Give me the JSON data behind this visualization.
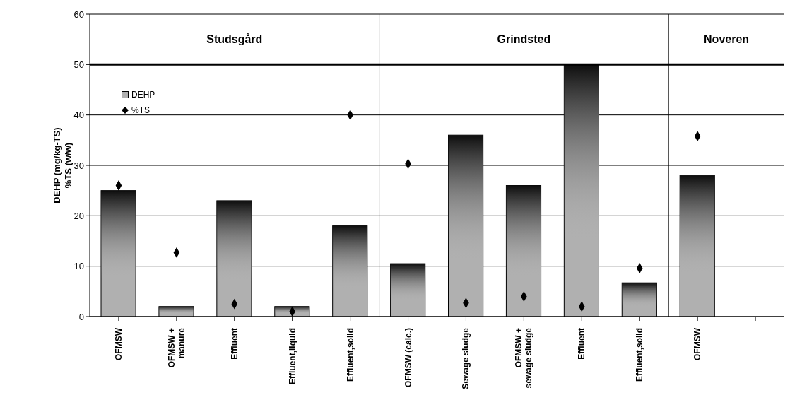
{
  "chart_data": {
    "type": "bar",
    "ylabel": "DEHP (mg/kg-TS)\n%TS (w/w)",
    "categories": [
      "OFMSW",
      "OFMSW +\nmanure",
      "Effluent",
      "Effluent,liquid",
      "Effluent,solid",
      "OFMSW (calc.)",
      "Sewage sludge",
      "OFMSW +\nsewage sludge",
      "Effluent",
      "Effluent,solid",
      "OFMSW",
      null
    ],
    "series": [
      {
        "name": "DEHP",
        "color": "#b0b0b0",
        "values": [
          25,
          2,
          23,
          2,
          18,
          10.5,
          36,
          26,
          50,
          6.7,
          28,
          null
        ]
      },
      {
        "name": "%TS",
        "type": "scatter",
        "color": "#000000",
        "values": [
          26,
          12.7,
          2.5,
          1,
          40,
          30.3,
          2.7,
          4,
          2,
          9.6,
          35.8,
          null
        ]
      }
    ],
    "annotations": [
      "Studsgård",
      "Grindsted",
      "Noveren"
    ],
    "ref_lines": [
      {
        "axis": "y",
        "value": 50,
        "color": "#000000"
      }
    ],
    "ylim": [
      0,
      60
    ],
    "yticks": [
      0,
      10,
      20,
      30,
      40,
      50,
      60
    ],
    "grid": "y",
    "legend": "top left",
    "marker": "diamond"
  }
}
